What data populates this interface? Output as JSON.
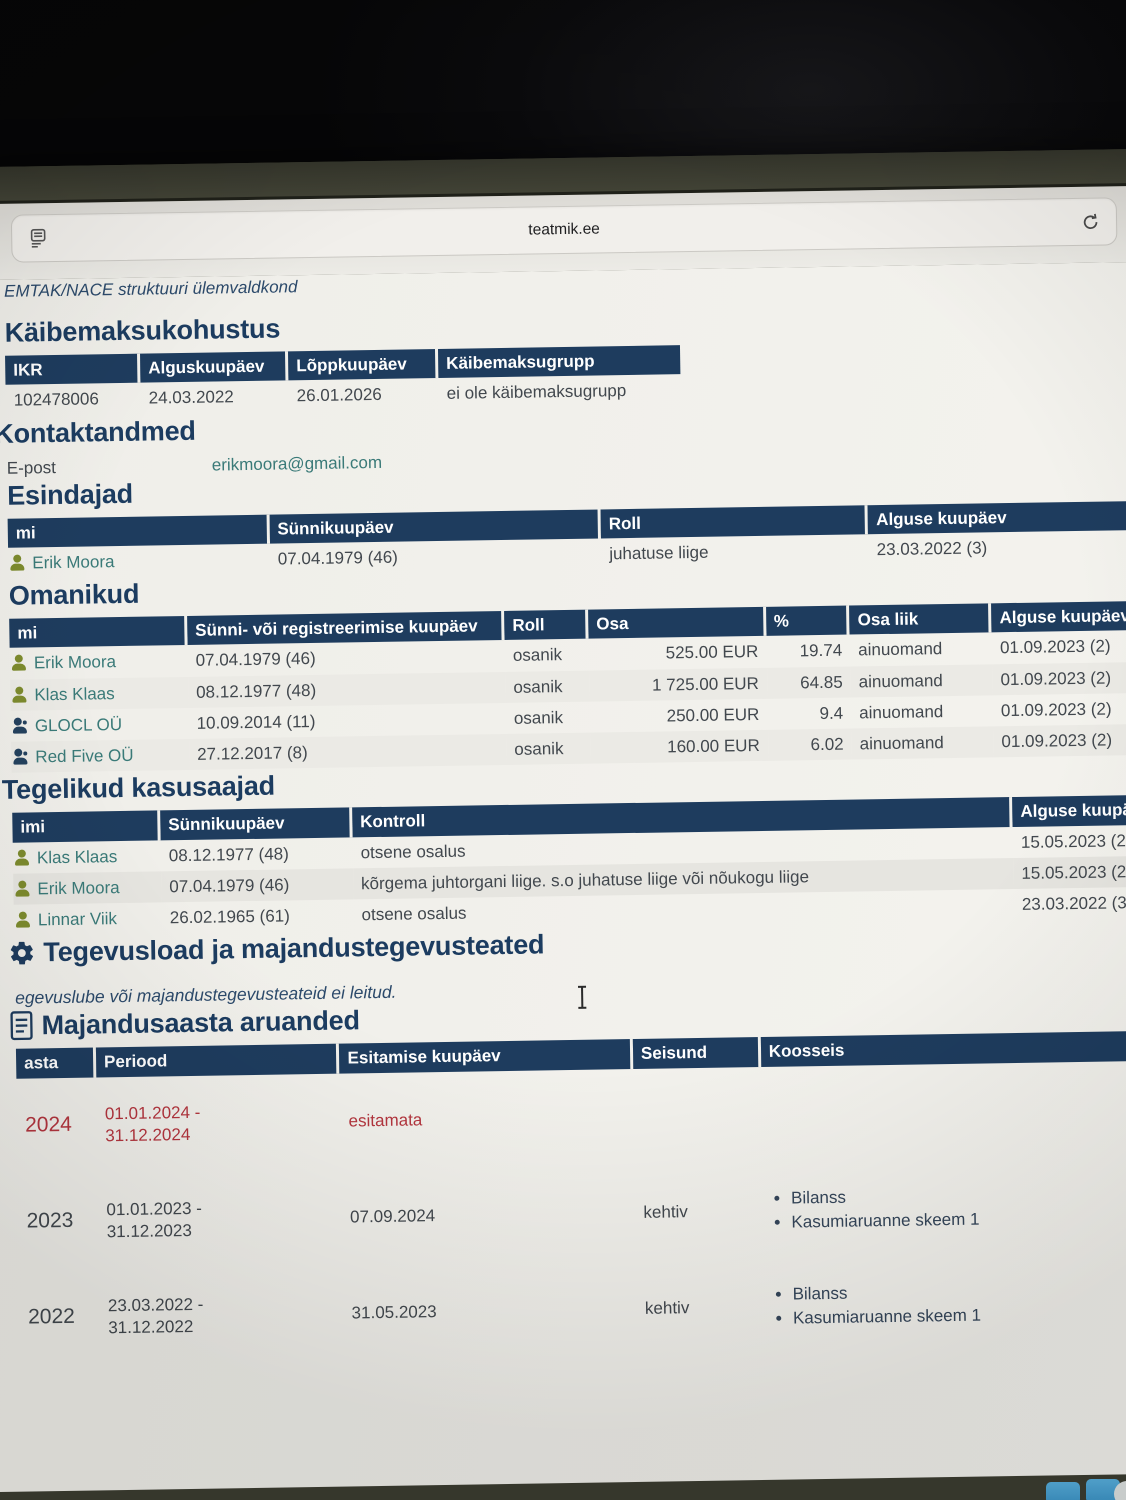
{
  "browser": {
    "url": "teatmik.ee"
  },
  "colors": {
    "header_navy": "#1e3c5e",
    "link_teal": "#3a7a78",
    "alert_red": "#b3353e",
    "person_icon_olive": "#7d8b2e"
  },
  "page": {
    "top_fragment": "EMTAK/NACE struktuuri ülemvaldkond",
    "vat": {
      "title": "Käibemaksukohustus",
      "table": {
        "headers": [
          "IKR",
          "Alguskuupäev",
          "Lõppkuupäev",
          "Käibemaksugrupp"
        ],
        "rows": [
          {
            "cells": [
              "102478006",
              "24.03.2022",
              "26.01.2026",
              "ei ole käibemaksugrupp"
            ]
          }
        ]
      }
    },
    "contact": {
      "title": "Kontaktandmed",
      "label": "E-post",
      "value": "erikmoora@gmail.com"
    },
    "representatives": {
      "title": "Esindajad",
      "table": {
        "headers": [
          "mi",
          "Sünnikuupäev",
          "Roll",
          "Alguse kuupäev"
        ],
        "rows": [
          {
            "icon": "person",
            "cells": [
              "Erik Moora",
              "07.04.1979 (46)",
              "juhatuse liige",
              "23.03.2022 (3)"
            ]
          }
        ]
      }
    },
    "owners": {
      "title": "Omanikud",
      "table": {
        "headers": [
          "mi",
          "Sünni- või registreerimise kuupäev",
          "Roll",
          "Osa",
          "%",
          "Osa liik",
          "Alguse kuupäev"
        ],
        "rows": [
          {
            "icon": "person",
            "cells": [
              "Erik Moora",
              "07.04.1979 (46)",
              "osanik",
              "525.00 EUR",
              "19.74",
              "ainuomand",
              "01.09.2023 (2)"
            ]
          },
          {
            "icon": "person",
            "cells": [
              "Klas Klaas",
              "08.12.1977 (48)",
              "osanik",
              "1 725.00 EUR",
              "64.85",
              "ainuomand",
              "01.09.2023 (2)"
            ]
          },
          {
            "icon": "company",
            "cells": [
              "GLOCL OÜ",
              "10.09.2014 (11)",
              "osanik",
              "250.00 EUR",
              "9.4",
              "ainuomand",
              "01.09.2023 (2)"
            ]
          },
          {
            "icon": "company",
            "cells": [
              "Red Five OÜ",
              "27.12.2017 (8)",
              "osanik",
              "160.00 EUR",
              "6.02",
              "ainuomand",
              "01.09.2023 (2)"
            ]
          }
        ]
      }
    },
    "beneficiaries": {
      "title": "Tegelikud kasusaajad",
      "table": {
        "headers": [
          "imi",
          "Sünnikuupäev",
          "Kontroll",
          "Alguse kuupä"
        ],
        "rows": [
          {
            "icon": "person",
            "cells": [
              "Klas Klaas",
              "08.12.1977 (48)",
              "otsene osalus",
              "15.05.2023 (2"
            ]
          },
          {
            "icon": "person",
            "cells": [
              "Erik Moora",
              "07.04.1979 (46)",
              "kõrgema juhtorgani liige. s.o juhatuse liige või nõukogu liige",
              "15.05.2023 (2"
            ]
          },
          {
            "icon": "person",
            "cells": [
              "Linnar Viik",
              "26.02.1965 (61)",
              "otsene osalus",
              "23.03.2022 (3"
            ]
          }
        ]
      }
    },
    "licenses": {
      "title": "Tegevusload ja majandustegevusteated",
      "empty_note": "egevuslube või majandustegevusteateid ei leitud."
    },
    "reports": {
      "title": "Majandusaasta aruanded",
      "table": {
        "headers": [
          "asta",
          "Periood",
          "Esitamise kuupäev",
          "Seisund",
          "Koosseis"
        ],
        "rows": [
          {
            "cls": "unsubmitted",
            "cells": [
              "2024",
              "01.01.2024 - 31.12.2024",
              "esitamata",
              "",
              ""
            ]
          },
          {
            "cells": [
              "2023",
              "01.01.2023 - 31.12.2023",
              "07.09.2024",
              "kehtiv",
              [
                "Bilanss",
                "Kasumiaruanne skeem 1"
              ]
            ]
          },
          {
            "cells": [
              "2022",
              "23.03.2022 - 31.12.2022",
              "31.05.2023",
              "kehtiv",
              [
                "Bilanss",
                "Kasumiaruanne skeem 1"
              ]
            ]
          }
        ]
      }
    }
  }
}
